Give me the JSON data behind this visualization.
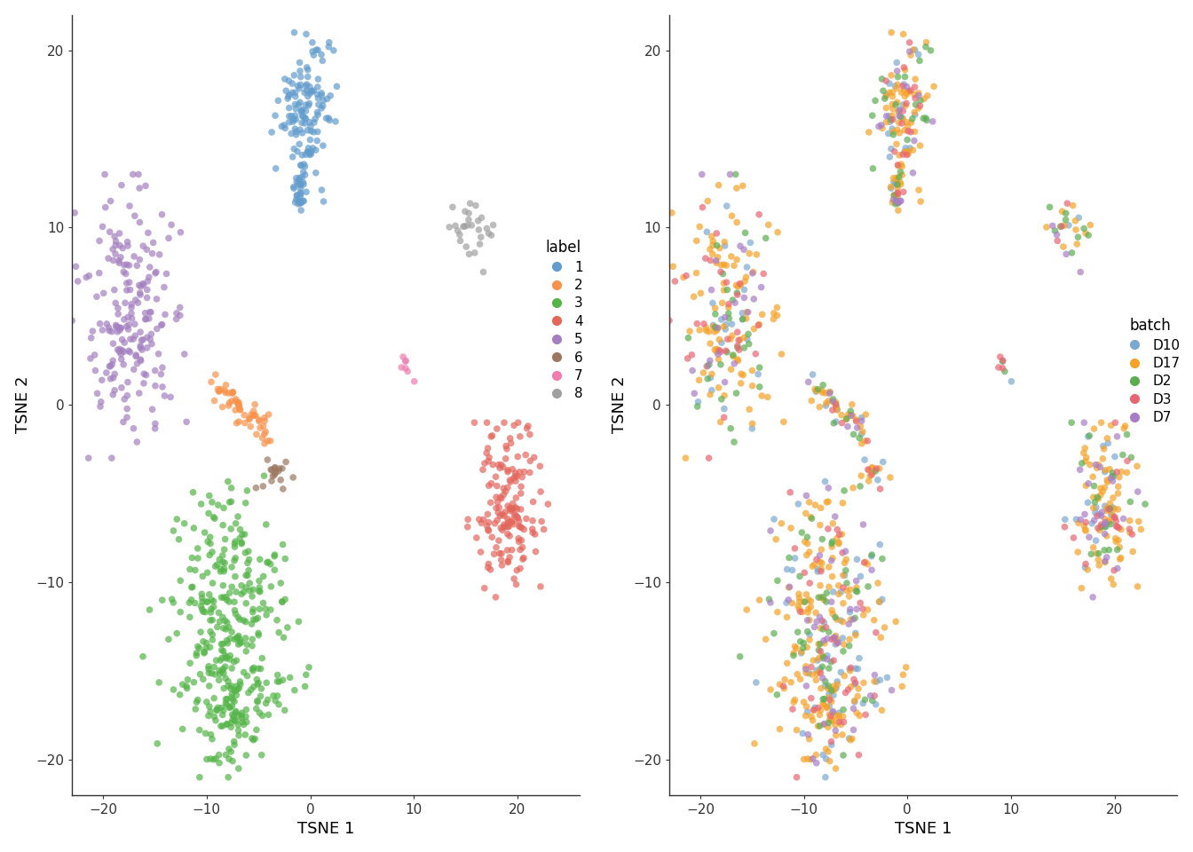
{
  "label_colors": {
    "1": "#619CCD",
    "2": "#F8924B",
    "3": "#53B447",
    "4": "#E3665B",
    "5": "#A37FC0",
    "6": "#9B7660",
    "7": "#EF7DAE",
    "8": "#A0A0A0"
  },
  "batch_colors": {
    "D10": "#7BA8D0",
    "D17": "#F5A227",
    "D2": "#5BAD50",
    "D3": "#E86572",
    "D7": "#A87DC5"
  },
  "xlim": [
    -23,
    26
  ],
  "ylim": [
    -22,
    22
  ],
  "xticks": [
    -20,
    -10,
    0,
    10,
    20
  ],
  "yticks": [
    -20,
    -10,
    0,
    10,
    20
  ],
  "xlabel": "TSNE 1",
  "ylabel": "TSNE 2",
  "legend_title_left": "label",
  "legend_title_right": "batch",
  "bg_color": "#FFFFFF",
  "point_size": 30,
  "alpha": 0.7,
  "seed": 42
}
